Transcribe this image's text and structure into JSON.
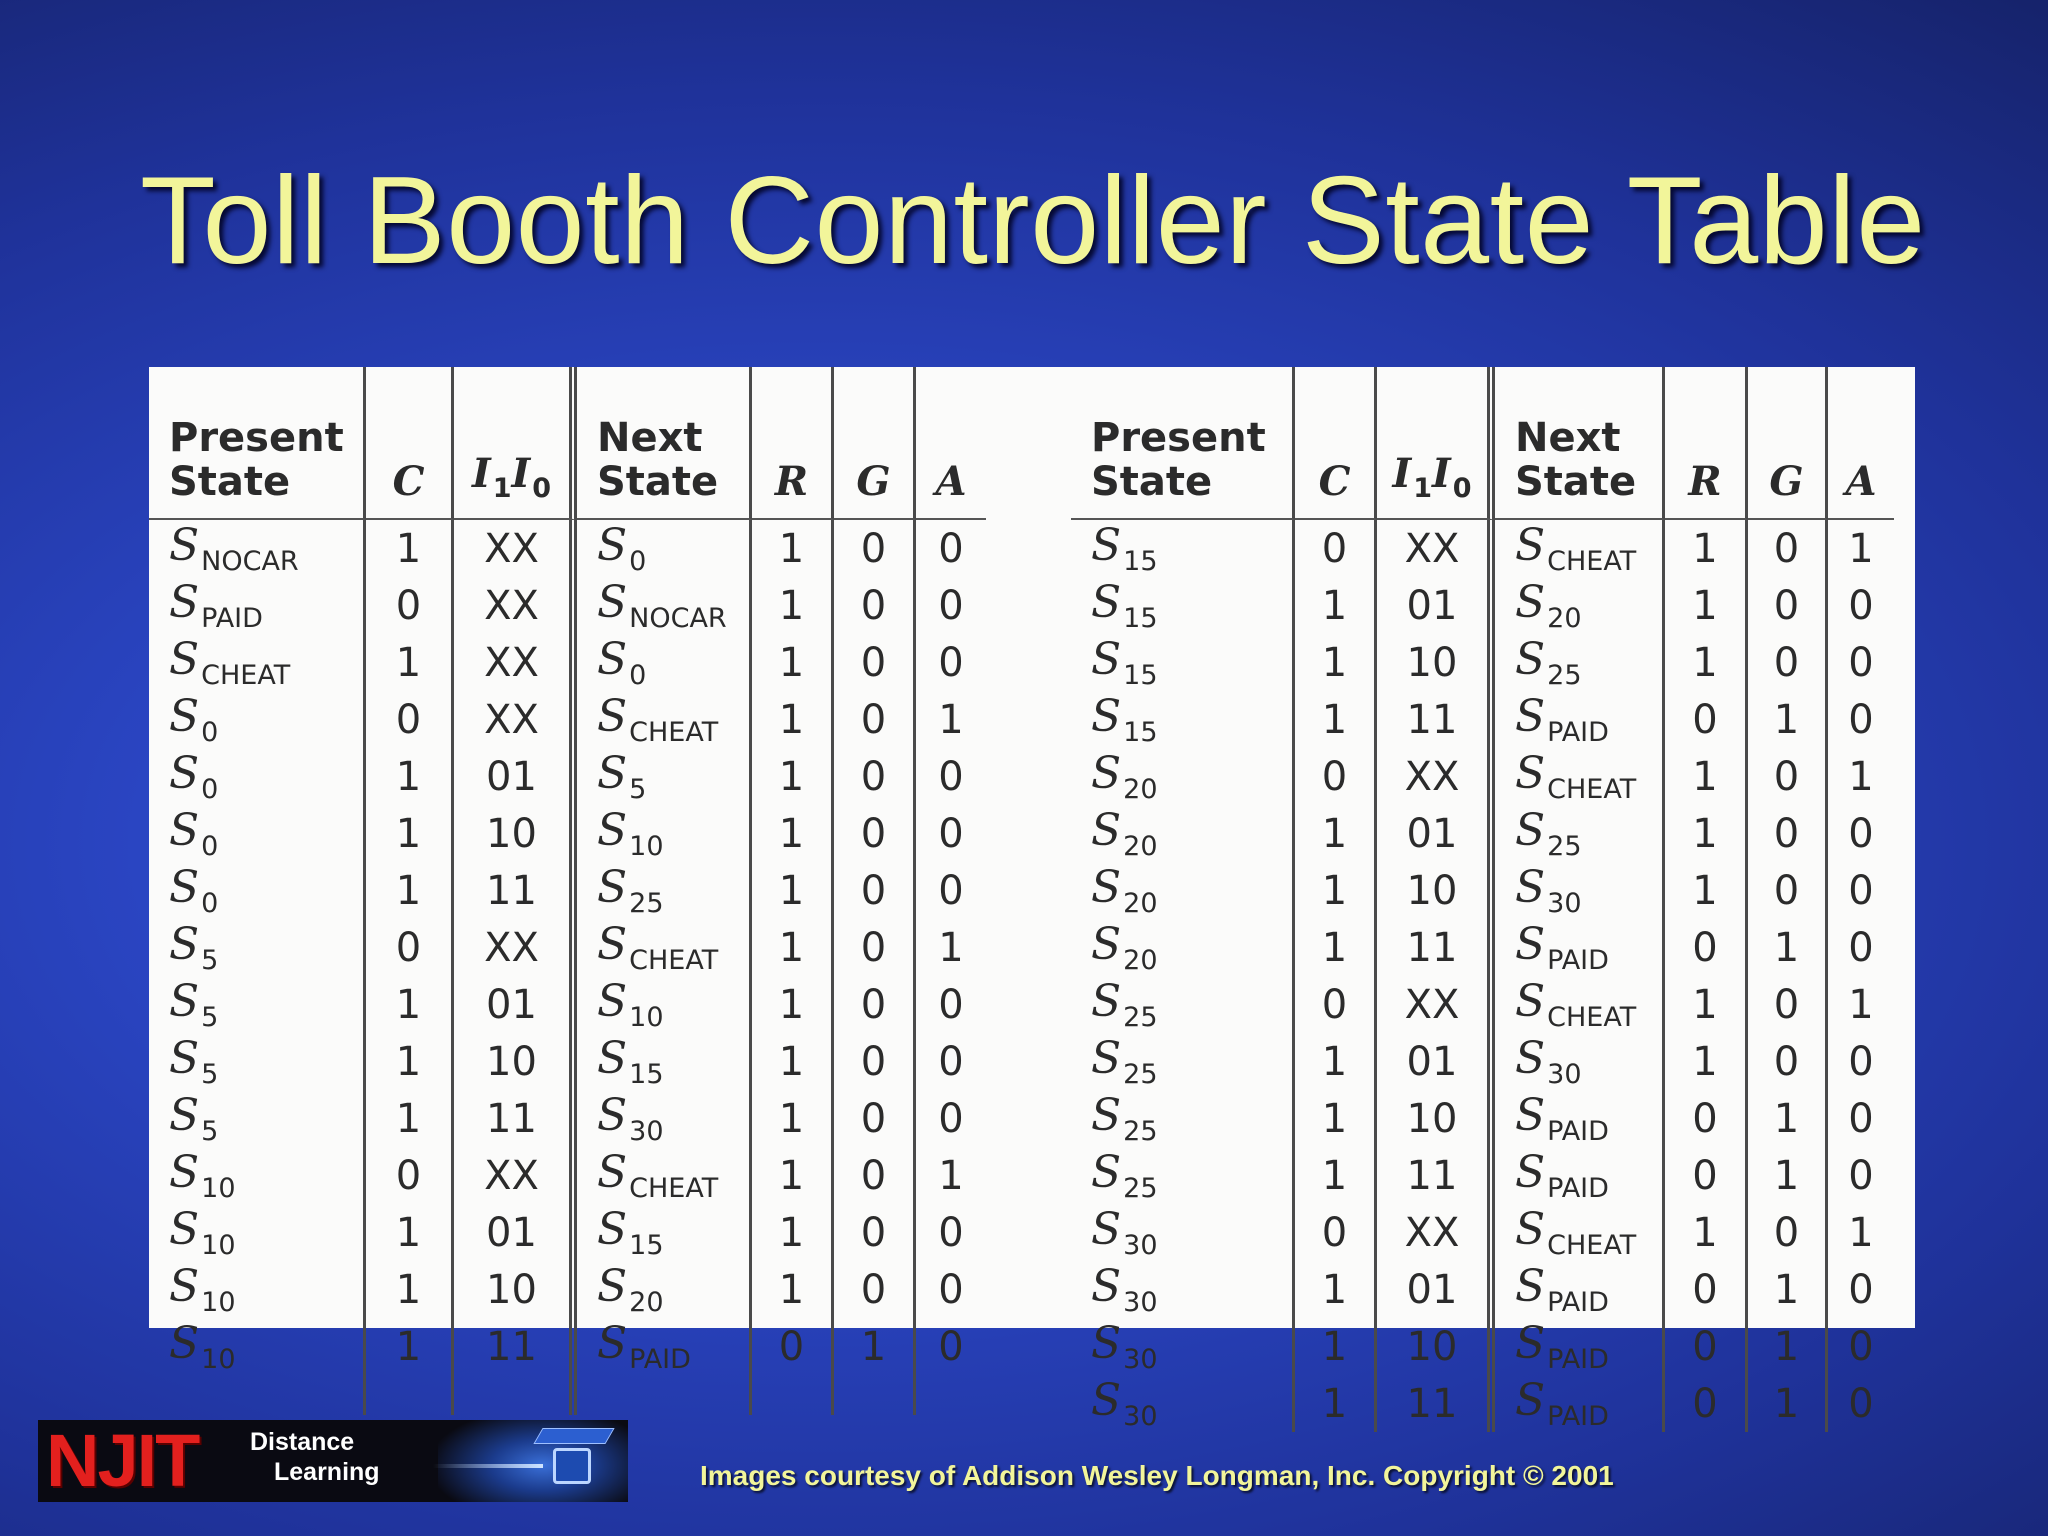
{
  "slide": {
    "title": "Toll Booth Controller State Table",
    "footer_credit": "Images courtesy of Addison Wesley Longman, Inc. Copyright © 2001",
    "logo": {
      "brand": "NJIT",
      "line1": "Distance",
      "line2": "Learning"
    }
  },
  "table": {
    "headers": {
      "present_state_line1": "Present",
      "present_state_line2": "State",
      "c": "C",
      "i_letter": "I",
      "i1_sub": "1",
      "i0_sub": "0",
      "next_state_line1": "Next",
      "next_state_line2": "State",
      "r": "R",
      "g": "G",
      "a": "A"
    },
    "left_rows": [
      {
        "ps": "S",
        "ps_sub": "NOCAR",
        "c": "1",
        "i": "XX",
        "ns": "S",
        "ns_sub": "0",
        "r": "1",
        "g": "0",
        "a": "0"
      },
      {
        "ps": "S",
        "ps_sub": "PAID",
        "c": "0",
        "i": "XX",
        "ns": "S",
        "ns_sub": "NOCAR",
        "r": "1",
        "g": "0",
        "a": "0"
      },
      {
        "ps": "S",
        "ps_sub": "CHEAT",
        "c": "1",
        "i": "XX",
        "ns": "S",
        "ns_sub": "0",
        "r": "1",
        "g": "0",
        "a": "0"
      },
      {
        "ps": "S",
        "ps_sub": "0",
        "c": "0",
        "i": "XX",
        "ns": "S",
        "ns_sub": "CHEAT",
        "r": "1",
        "g": "0",
        "a": "1"
      },
      {
        "ps": "S",
        "ps_sub": "0",
        "c": "1",
        "i": "01",
        "ns": "S",
        "ns_sub": "5",
        "r": "1",
        "g": "0",
        "a": "0"
      },
      {
        "ps": "S",
        "ps_sub": "0",
        "c": "1",
        "i": "10",
        "ns": "S",
        "ns_sub": "10",
        "r": "1",
        "g": "0",
        "a": "0"
      },
      {
        "ps": "S",
        "ps_sub": "0",
        "c": "1",
        "i": "11",
        "ns": "S",
        "ns_sub": "25",
        "r": "1",
        "g": "0",
        "a": "0"
      },
      {
        "ps": "S",
        "ps_sub": "5",
        "c": "0",
        "i": "XX",
        "ns": "S",
        "ns_sub": "CHEAT",
        "r": "1",
        "g": "0",
        "a": "1"
      },
      {
        "ps": "S",
        "ps_sub": "5",
        "c": "1",
        "i": "01",
        "ns": "S",
        "ns_sub": "10",
        "r": "1",
        "g": "0",
        "a": "0"
      },
      {
        "ps": "S",
        "ps_sub": "5",
        "c": "1",
        "i": "10",
        "ns": "S",
        "ns_sub": "15",
        "r": "1",
        "g": "0",
        "a": "0"
      },
      {
        "ps": "S",
        "ps_sub": "5",
        "c": "1",
        "i": "11",
        "ns": "S",
        "ns_sub": "30",
        "r": "1",
        "g": "0",
        "a": "0"
      },
      {
        "ps": "S",
        "ps_sub": "10",
        "c": "0",
        "i": "XX",
        "ns": "S",
        "ns_sub": "CHEAT",
        "r": "1",
        "g": "0",
        "a": "1"
      },
      {
        "ps": "S",
        "ps_sub": "10",
        "c": "1",
        "i": "01",
        "ns": "S",
        "ns_sub": "15",
        "r": "1",
        "g": "0",
        "a": "0"
      },
      {
        "ps": "S",
        "ps_sub": "10",
        "c": "1",
        "i": "10",
        "ns": "S",
        "ns_sub": "20",
        "r": "1",
        "g": "0",
        "a": "0"
      },
      {
        "ps": "S",
        "ps_sub": "10",
        "c": "1",
        "i": "11",
        "ns": "S",
        "ns_sub": "PAID",
        "r": "0",
        "g": "1",
        "a": "0"
      }
    ],
    "right_rows": [
      {
        "ps": "S",
        "ps_sub": "15",
        "c": "0",
        "i": "XX",
        "ns": "S",
        "ns_sub": "CHEAT",
        "r": "1",
        "g": "0",
        "a": "1"
      },
      {
        "ps": "S",
        "ps_sub": "15",
        "c": "1",
        "i": "01",
        "ns": "S",
        "ns_sub": "20",
        "r": "1",
        "g": "0",
        "a": "0"
      },
      {
        "ps": "S",
        "ps_sub": "15",
        "c": "1",
        "i": "10",
        "ns": "S",
        "ns_sub": "25",
        "r": "1",
        "g": "0",
        "a": "0"
      },
      {
        "ps": "S",
        "ps_sub": "15",
        "c": "1",
        "i": "11",
        "ns": "S",
        "ns_sub": "PAID",
        "r": "0",
        "g": "1",
        "a": "0"
      },
      {
        "ps": "S",
        "ps_sub": "20",
        "c": "0",
        "i": "XX",
        "ns": "S",
        "ns_sub": "CHEAT",
        "r": "1",
        "g": "0",
        "a": "1"
      },
      {
        "ps": "S",
        "ps_sub": "20",
        "c": "1",
        "i": "01",
        "ns": "S",
        "ns_sub": "25",
        "r": "1",
        "g": "0",
        "a": "0"
      },
      {
        "ps": "S",
        "ps_sub": "20",
        "c": "1",
        "i": "10",
        "ns": "S",
        "ns_sub": "30",
        "r": "1",
        "g": "0",
        "a": "0"
      },
      {
        "ps": "S",
        "ps_sub": "20",
        "c": "1",
        "i": "11",
        "ns": "S",
        "ns_sub": "PAID",
        "r": "0",
        "g": "1",
        "a": "0"
      },
      {
        "ps": "S",
        "ps_sub": "25",
        "c": "0",
        "i": "XX",
        "ns": "S",
        "ns_sub": "CHEAT",
        "r": "1",
        "g": "0",
        "a": "1"
      },
      {
        "ps": "S",
        "ps_sub": "25",
        "c": "1",
        "i": "01",
        "ns": "S",
        "ns_sub": "30",
        "r": "1",
        "g": "0",
        "a": "0"
      },
      {
        "ps": "S",
        "ps_sub": "25",
        "c": "1",
        "i": "10",
        "ns": "S",
        "ns_sub": "PAID",
        "r": "0",
        "g": "1",
        "a": "0"
      },
      {
        "ps": "S",
        "ps_sub": "25",
        "c": "1",
        "i": "11",
        "ns": "S",
        "ns_sub": "PAID",
        "r": "0",
        "g": "1",
        "a": "0"
      },
      {
        "ps": "S",
        "ps_sub": "30",
        "c": "0",
        "i": "XX",
        "ns": "S",
        "ns_sub": "CHEAT",
        "r": "1",
        "g": "0",
        "a": "1"
      },
      {
        "ps": "S",
        "ps_sub": "30",
        "c": "1",
        "i": "01",
        "ns": "S",
        "ns_sub": "PAID",
        "r": "0",
        "g": "1",
        "a": "0"
      },
      {
        "ps": "S",
        "ps_sub": "30",
        "c": "1",
        "i": "10",
        "ns": "S",
        "ns_sub": "PAID",
        "r": "0",
        "g": "1",
        "a": "0"
      },
      {
        "ps": "S",
        "ps_sub": "30",
        "c": "1",
        "i": "11",
        "ns": "S",
        "ns_sub": "PAID",
        "r": "0",
        "g": "1",
        "a": "0"
      }
    ]
  }
}
